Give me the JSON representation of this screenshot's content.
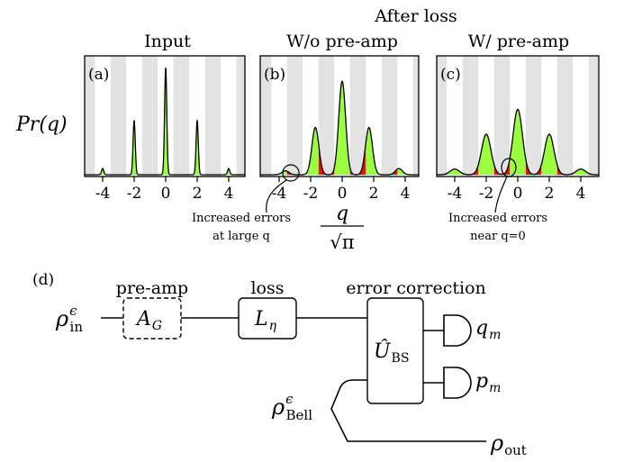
{
  "titles": {
    "after_loss": "After loss",
    "input": "Input",
    "without_preamp": "W/o pre-amp",
    "with_preamp": "W/ pre-amp"
  },
  "y_axis_label": "Pr(q)",
  "x_axis_label": {
    "numerator": "q",
    "denominator": "√π"
  },
  "panels": [
    {
      "label": "(a)",
      "ticks": [
        "-4",
        "-2",
        "0",
        "2",
        "4"
      ]
    },
    {
      "label": "(b)",
      "ticks": [
        "-4",
        "-2",
        "0",
        "2",
        "4"
      ]
    },
    {
      "label": "(c)",
      "ticks": [
        "-4",
        "-2",
        "0",
        "2",
        "4"
      ]
    }
  ],
  "annotations": {
    "b_line1": "Increased errors",
    "b_line2": "at large q",
    "c_line1": "Increased errors",
    "c_line2": "near q=0"
  },
  "circuit": {
    "label": "(d)",
    "preamp_label": "pre-amp",
    "loss_label": "loss",
    "ec_label": "error correction",
    "input_state": {
      "symbol": "ρ",
      "sup": "ϵ",
      "sub": "in"
    },
    "preamp_box": {
      "symbol": "A",
      "sub": "G"
    },
    "loss_box": {
      "symbol": "L",
      "sub": "η"
    },
    "bs_box": {
      "symbol": "Û",
      "sub": "BS"
    },
    "qm": {
      "symbol": "q",
      "sub": "m"
    },
    "pm": {
      "symbol": "p",
      "sub": "m"
    },
    "bell_state": {
      "symbol": "ρ",
      "sup": "ϵ",
      "sub": "Bell"
    },
    "output_state": {
      "symbol": "ρ",
      "sub": "out"
    }
  },
  "colors": {
    "peak_fill": "#9BFF40",
    "error_fill": "#E8111B",
    "stripe": "#E3E3E3"
  }
}
